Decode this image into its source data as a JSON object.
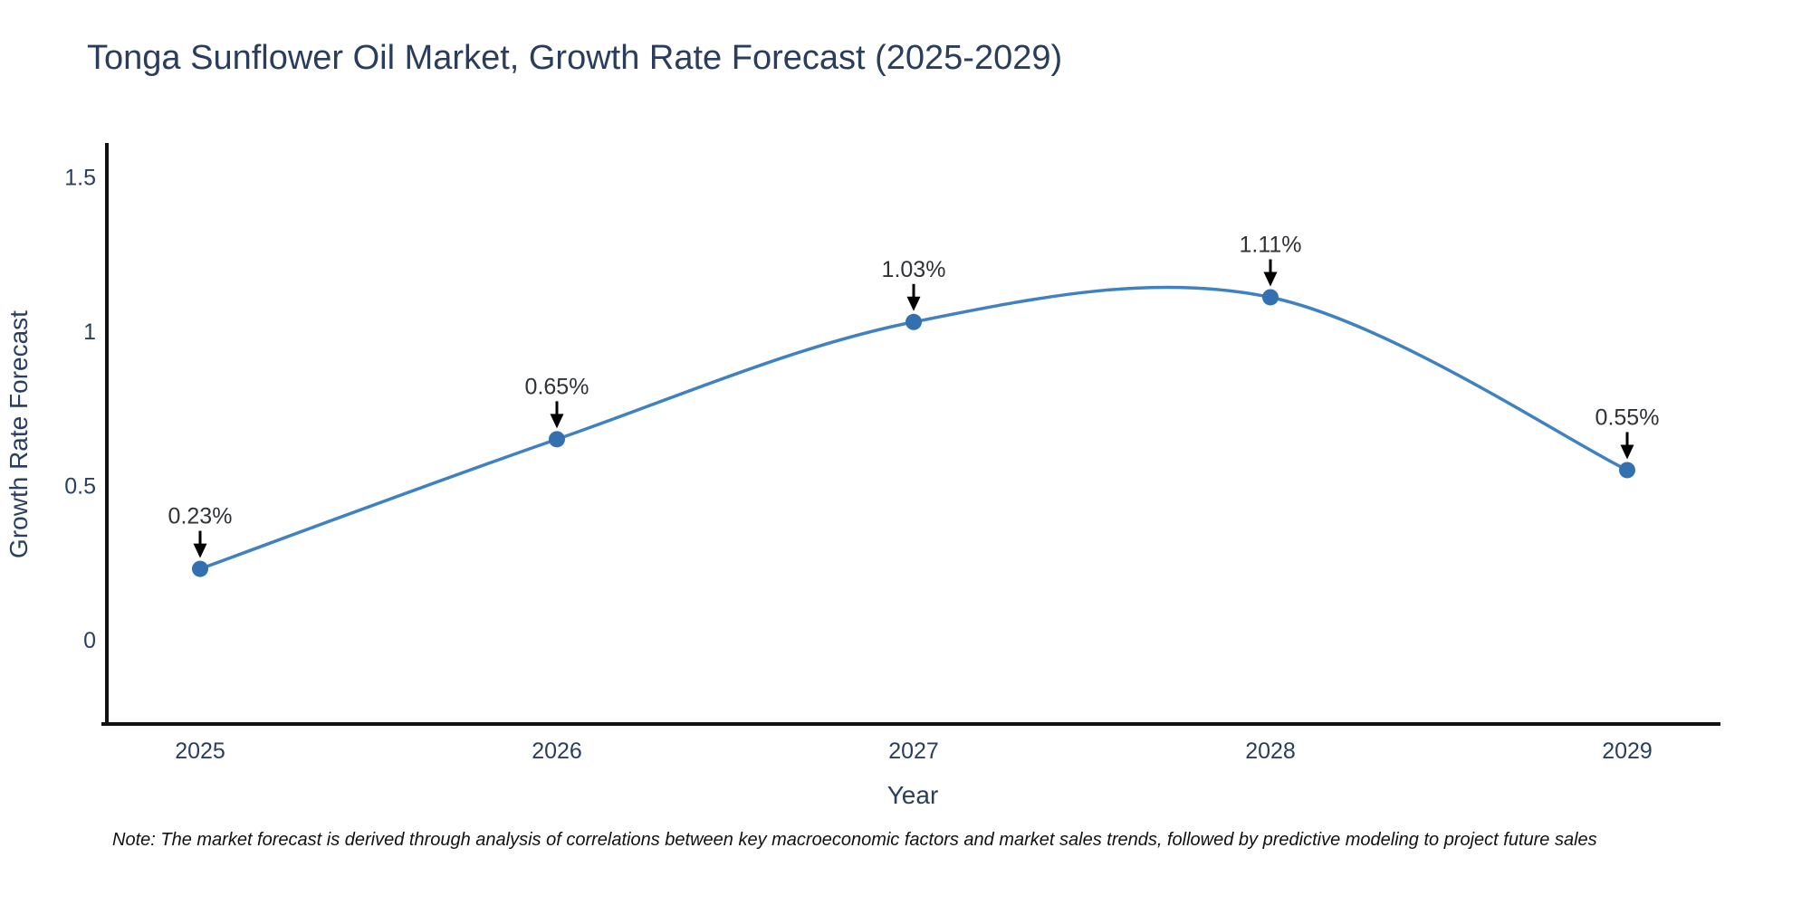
{
  "chart_data": {
    "type": "line",
    "title": "Tonga Sunflower Oil Market, Growth Rate Forecast (2025-2029)",
    "x": [
      "2025",
      "2026",
      "2027",
      "2028",
      "2029"
    ],
    "series": [
      {
        "name": "Growth Rate Forecast",
        "values": [
          0.23,
          0.65,
          1.03,
          1.11,
          0.55
        ]
      }
    ],
    "point_labels": [
      "0.23%",
      "0.65%",
      "1.03%",
      "1.11%",
      "0.55%"
    ],
    "xlabel": "Year",
    "ylabel": "Growth Rate Forecast",
    "ytick_labels": [
      "0",
      "0.5",
      "1",
      "1.5"
    ],
    "ytick_values": [
      0,
      0.5,
      1,
      1.5
    ],
    "ylim": [
      -0.27,
      1.61
    ],
    "line_shape": "spline",
    "grid": false,
    "legend": "none",
    "markers": true,
    "annotations_have_arrows": true,
    "colors": {
      "line": "#3f81c1",
      "marker": "#3270b0",
      "axis": "#111111",
      "tick_text": "#2a3f5f",
      "axis_title_text": "#2a3f5f",
      "title_text": "#2b3d5c",
      "annotation_text": "#2f3338",
      "arrow": "#000000",
      "background": "#ffffff"
    }
  },
  "note": "Note: The market forecast is derived through analysis of correlations between key macroeconomic factors and market sales trends, followed by predictive modeling to project future sales"
}
